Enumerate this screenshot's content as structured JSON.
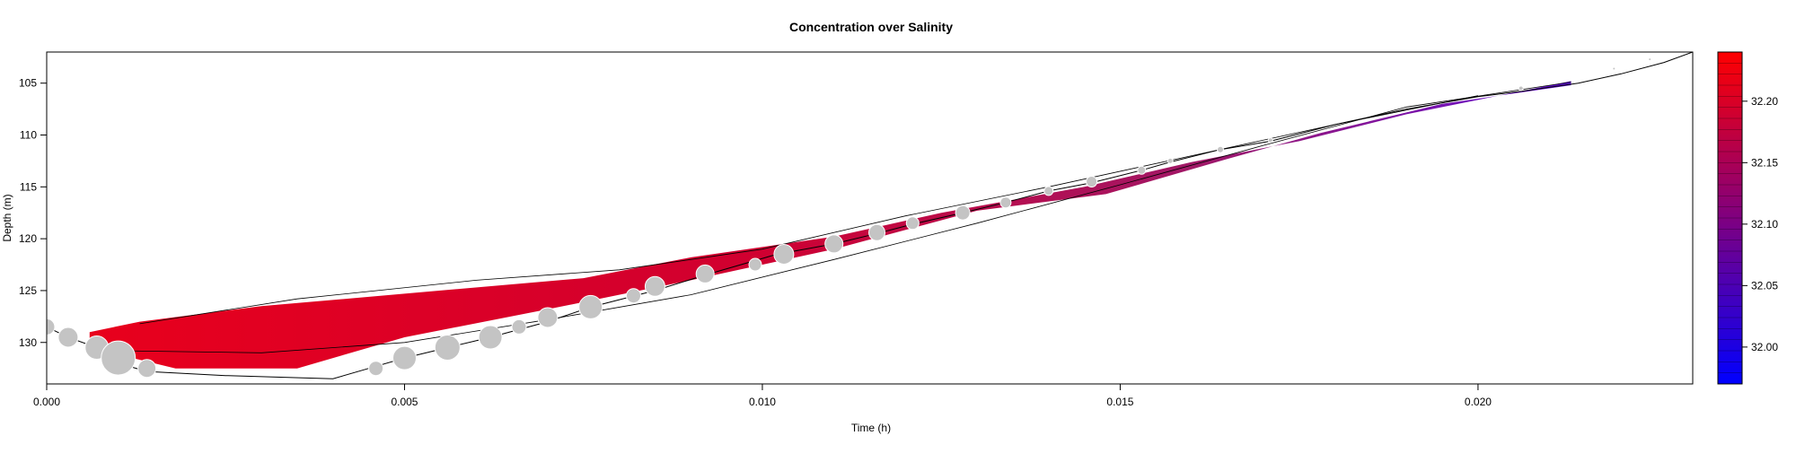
{
  "chart_data": {
    "type": "scatter",
    "title": "Concentration over Salinity",
    "xlabel": "Time (h)",
    "ylabel": "Depth (m)",
    "xlim": [
      0,
      0.023
    ],
    "ylim": [
      134,
      102
    ],
    "y_reversed": true,
    "x_ticks": [
      0,
      0.005,
      0.01,
      0.015,
      0.02
    ],
    "x_tick_labels": [
      "0.000",
      "0.005",
      "0.010",
      "0.015",
      "0.020"
    ],
    "y_ticks": [
      105,
      110,
      115,
      120,
      125,
      130
    ],
    "y_tick_labels": [
      "105",
      "110",
      "115",
      "120",
      "125",
      "130"
    ],
    "grid": false,
    "colorbar": {
      "range": [
        31.97,
        32.24
      ],
      "ticks": [
        32.0,
        32.05,
        32.1,
        32.15,
        32.2
      ],
      "tick_labels": [
        "32.00",
        "32.05",
        "32.10",
        "32.15",
        "32.20"
      ],
      "low_color": "#0000ff",
      "high_color": "#ff0000"
    },
    "band_color_start": "#e8001c",
    "band_color_end": "#6010d8",
    "band_upper": [
      {
        "x": 0.0006,
        "y": 129.0
      },
      {
        "x": 0.0013,
        "y": 128.0
      },
      {
        "x": 0.003,
        "y": 126.5
      },
      {
        "x": 0.0055,
        "y": 125.0
      },
      {
        "x": 0.0075,
        "y": 123.8
      },
      {
        "x": 0.009,
        "y": 121.8
      },
      {
        "x": 0.011,
        "y": 119.8
      },
      {
        "x": 0.0125,
        "y": 117.5
      },
      {
        "x": 0.0145,
        "y": 115.0
      },
      {
        "x": 0.016,
        "y": 112.6
      },
      {
        "x": 0.0175,
        "y": 110.6
      },
      {
        "x": 0.019,
        "y": 108.0
      },
      {
        "x": 0.0213,
        "y": 104.8
      }
    ],
    "band_lower": [
      {
        "x": 0.0213,
        "y": 105.2
      },
      {
        "x": 0.0195,
        "y": 107.0
      },
      {
        "x": 0.0178,
        "y": 109.8
      },
      {
        "x": 0.0165,
        "y": 112.3
      },
      {
        "x": 0.0148,
        "y": 115.7
      },
      {
        "x": 0.013,
        "y": 117.3
      },
      {
        "x": 0.011,
        "y": 121.0
      },
      {
        "x": 0.009,
        "y": 124.0
      },
      {
        "x": 0.007,
        "y": 126.8
      },
      {
        "x": 0.005,
        "y": 129.5
      },
      {
        "x": 0.0035,
        "y": 132.5
      },
      {
        "x": 0.0018,
        "y": 132.5
      },
      {
        "x": 0.0006,
        "y": 130.5
      }
    ],
    "contour_line": [
      {
        "x": 0.001,
        "y": 130.8
      },
      {
        "x": 0.003,
        "y": 131.0
      },
      {
        "x": 0.005,
        "y": 130.0
      },
      {
        "x": 0.007,
        "y": 127.8
      },
      {
        "x": 0.009,
        "y": 125.4
      },
      {
        "x": 0.011,
        "y": 122.0
      },
      {
        "x": 0.013,
        "y": 118.5
      },
      {
        "x": 0.015,
        "y": 114.8
      },
      {
        "x": 0.017,
        "y": 111.0
      },
      {
        "x": 0.019,
        "y": 107.3
      },
      {
        "x": 0.0213,
        "y": 104.9
      }
    ],
    "contour_line_2": [
      {
        "x": 0.0013,
        "y": 128.2
      },
      {
        "x": 0.0035,
        "y": 125.8
      },
      {
        "x": 0.006,
        "y": 124.0
      },
      {
        "x": 0.008,
        "y": 123.0
      },
      {
        "x": 0.01,
        "y": 121.0
      },
      {
        "x": 0.012,
        "y": 117.8
      },
      {
        "x": 0.014,
        "y": 115.0
      },
      {
        "x": 0.016,
        "y": 112.0
      },
      {
        "x": 0.018,
        "y": 109.0
      },
      {
        "x": 0.02,
        "y": 106.2
      }
    ],
    "track_line": [
      {
        "x": 0.0,
        "y": 128.5
      },
      {
        "x": 0.0003,
        "y": 129.5
      },
      {
        "x": 0.0007,
        "y": 130.5
      },
      {
        "x": 0.001,
        "y": 132.0
      },
      {
        "x": 0.0014,
        "y": 132.8
      },
      {
        "x": 0.0025,
        "y": 133.2
      },
      {
        "x": 0.004,
        "y": 133.5
      },
      {
        "x": 0.0045,
        "y": 132.5
      },
      {
        "x": 0.005,
        "y": 131.5
      },
      {
        "x": 0.0056,
        "y": 130.5
      },
      {
        "x": 0.0062,
        "y": 129.5
      },
      {
        "x": 0.007,
        "y": 128.0
      },
      {
        "x": 0.0076,
        "y": 126.6
      },
      {
        "x": 0.0085,
        "y": 125.0
      },
      {
        "x": 0.0092,
        "y": 123.5
      },
      {
        "x": 0.0102,
        "y": 121.5
      },
      {
        "x": 0.011,
        "y": 120.5
      },
      {
        "x": 0.0116,
        "y": 119.5
      },
      {
        "x": 0.0121,
        "y": 118.6
      },
      {
        "x": 0.0128,
        "y": 117.5
      },
      {
        "x": 0.0134,
        "y": 116.5
      },
      {
        "x": 0.014,
        "y": 115.4
      },
      {
        "x": 0.0146,
        "y": 114.6
      },
      {
        "x": 0.0153,
        "y": 113.4
      },
      {
        "x": 0.0157,
        "y": 112.6
      },
      {
        "x": 0.0164,
        "y": 111.4
      },
      {
        "x": 0.0171,
        "y": 110.6
      },
      {
        "x": 0.018,
        "y": 109.0
      },
      {
        "x": 0.019,
        "y": 107.5
      },
      {
        "x": 0.02,
        "y": 106.3
      },
      {
        "x": 0.0206,
        "y": 105.8
      },
      {
        "x": 0.0214,
        "y": 105.0
      },
      {
        "x": 0.022,
        "y": 104.1
      },
      {
        "x": 0.0226,
        "y": 103.0
      },
      {
        "x": 0.023,
        "y": 102.0
      }
    ],
    "points": [
      {
        "x": 0.0,
        "y": 128.5,
        "size": 9
      },
      {
        "x": 0.0003,
        "y": 129.5,
        "size": 11
      },
      {
        "x": 0.0007,
        "y": 130.5,
        "size": 13
      },
      {
        "x": 0.001,
        "y": 131.5,
        "size": 19
      },
      {
        "x": 0.0014,
        "y": 132.5,
        "size": 10
      },
      {
        "x": 0.0046,
        "y": 132.5,
        "size": 8
      },
      {
        "x": 0.005,
        "y": 131.5,
        "size": 13
      },
      {
        "x": 0.0056,
        "y": 130.5,
        "size": 14
      },
      {
        "x": 0.0062,
        "y": 129.5,
        "size": 13
      },
      {
        "x": 0.0066,
        "y": 128.5,
        "size": 8
      },
      {
        "x": 0.007,
        "y": 127.6,
        "size": 11
      },
      {
        "x": 0.0076,
        "y": 126.6,
        "size": 13
      },
      {
        "x": 0.0082,
        "y": 125.5,
        "size": 8
      },
      {
        "x": 0.0085,
        "y": 124.6,
        "size": 11
      },
      {
        "x": 0.0092,
        "y": 123.4,
        "size": 10
      },
      {
        "x": 0.0099,
        "y": 122.5,
        "size": 7
      },
      {
        "x": 0.0103,
        "y": 121.5,
        "size": 11
      },
      {
        "x": 0.011,
        "y": 120.5,
        "size": 10
      },
      {
        "x": 0.0116,
        "y": 119.4,
        "size": 9
      },
      {
        "x": 0.0121,
        "y": 118.5,
        "size": 7
      },
      {
        "x": 0.0128,
        "y": 117.5,
        "size": 8
      },
      {
        "x": 0.0134,
        "y": 116.5,
        "size": 6
      },
      {
        "x": 0.014,
        "y": 115.4,
        "size": 5
      },
      {
        "x": 0.0146,
        "y": 114.5,
        "size": 6
      },
      {
        "x": 0.0153,
        "y": 113.4,
        "size": 4.5
      },
      {
        "x": 0.0157,
        "y": 112.5,
        "size": 3
      },
      {
        "x": 0.0164,
        "y": 111.4,
        "size": 3.5
      },
      {
        "x": 0.0171,
        "y": 110.5,
        "size": 2.5
      },
      {
        "x": 0.0206,
        "y": 105.5,
        "size": 2.5
      },
      {
        "x": 0.0219,
        "y": 103.6,
        "size": 1.5
      },
      {
        "x": 0.0224,
        "y": 102.7,
        "size": 1.5
      }
    ]
  }
}
